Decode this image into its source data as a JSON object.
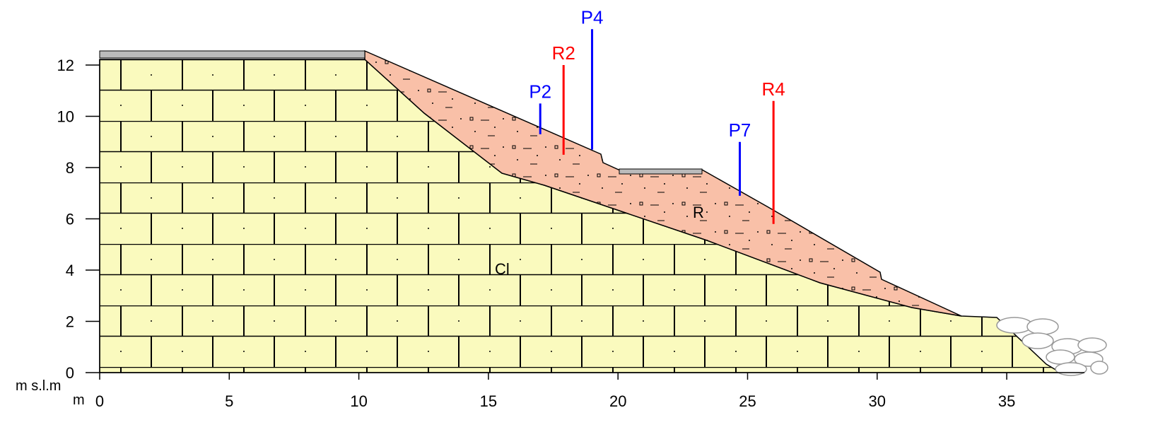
{
  "axes": {
    "x_label": "m",
    "y_label": "m s.l.m",
    "xlim": [
      0,
      38
    ],
    "ylim": [
      0,
      12
    ],
    "xticks": [
      0,
      5,
      10,
      15,
      20,
      25,
      30,
      35
    ],
    "yticks": [
      0,
      2,
      4,
      6,
      8,
      10,
      12
    ]
  },
  "layers": [
    {
      "label": "Cl"
    },
    {
      "label": "R"
    }
  ],
  "boreholes": [
    {
      "label": "P2",
      "color": "#0000ff",
      "x": 17.0,
      "top": 10.5,
      "base": 9.3
    },
    {
      "label": "R2",
      "color": "#ff0000",
      "x": 17.9,
      "top": 12.0,
      "base": 8.5
    },
    {
      "label": "P4",
      "color": "#0000ff",
      "x": 19.0,
      "top": 13.4,
      "base": 8.7
    },
    {
      "label": "P7",
      "color": "#0000ff",
      "x": 24.7,
      "top": 9.0,
      "base": 6.9
    },
    {
      "label": "R4",
      "color": "#ff0000",
      "x": 26.0,
      "top": 10.6,
      "base": 5.8
    }
  ]
}
